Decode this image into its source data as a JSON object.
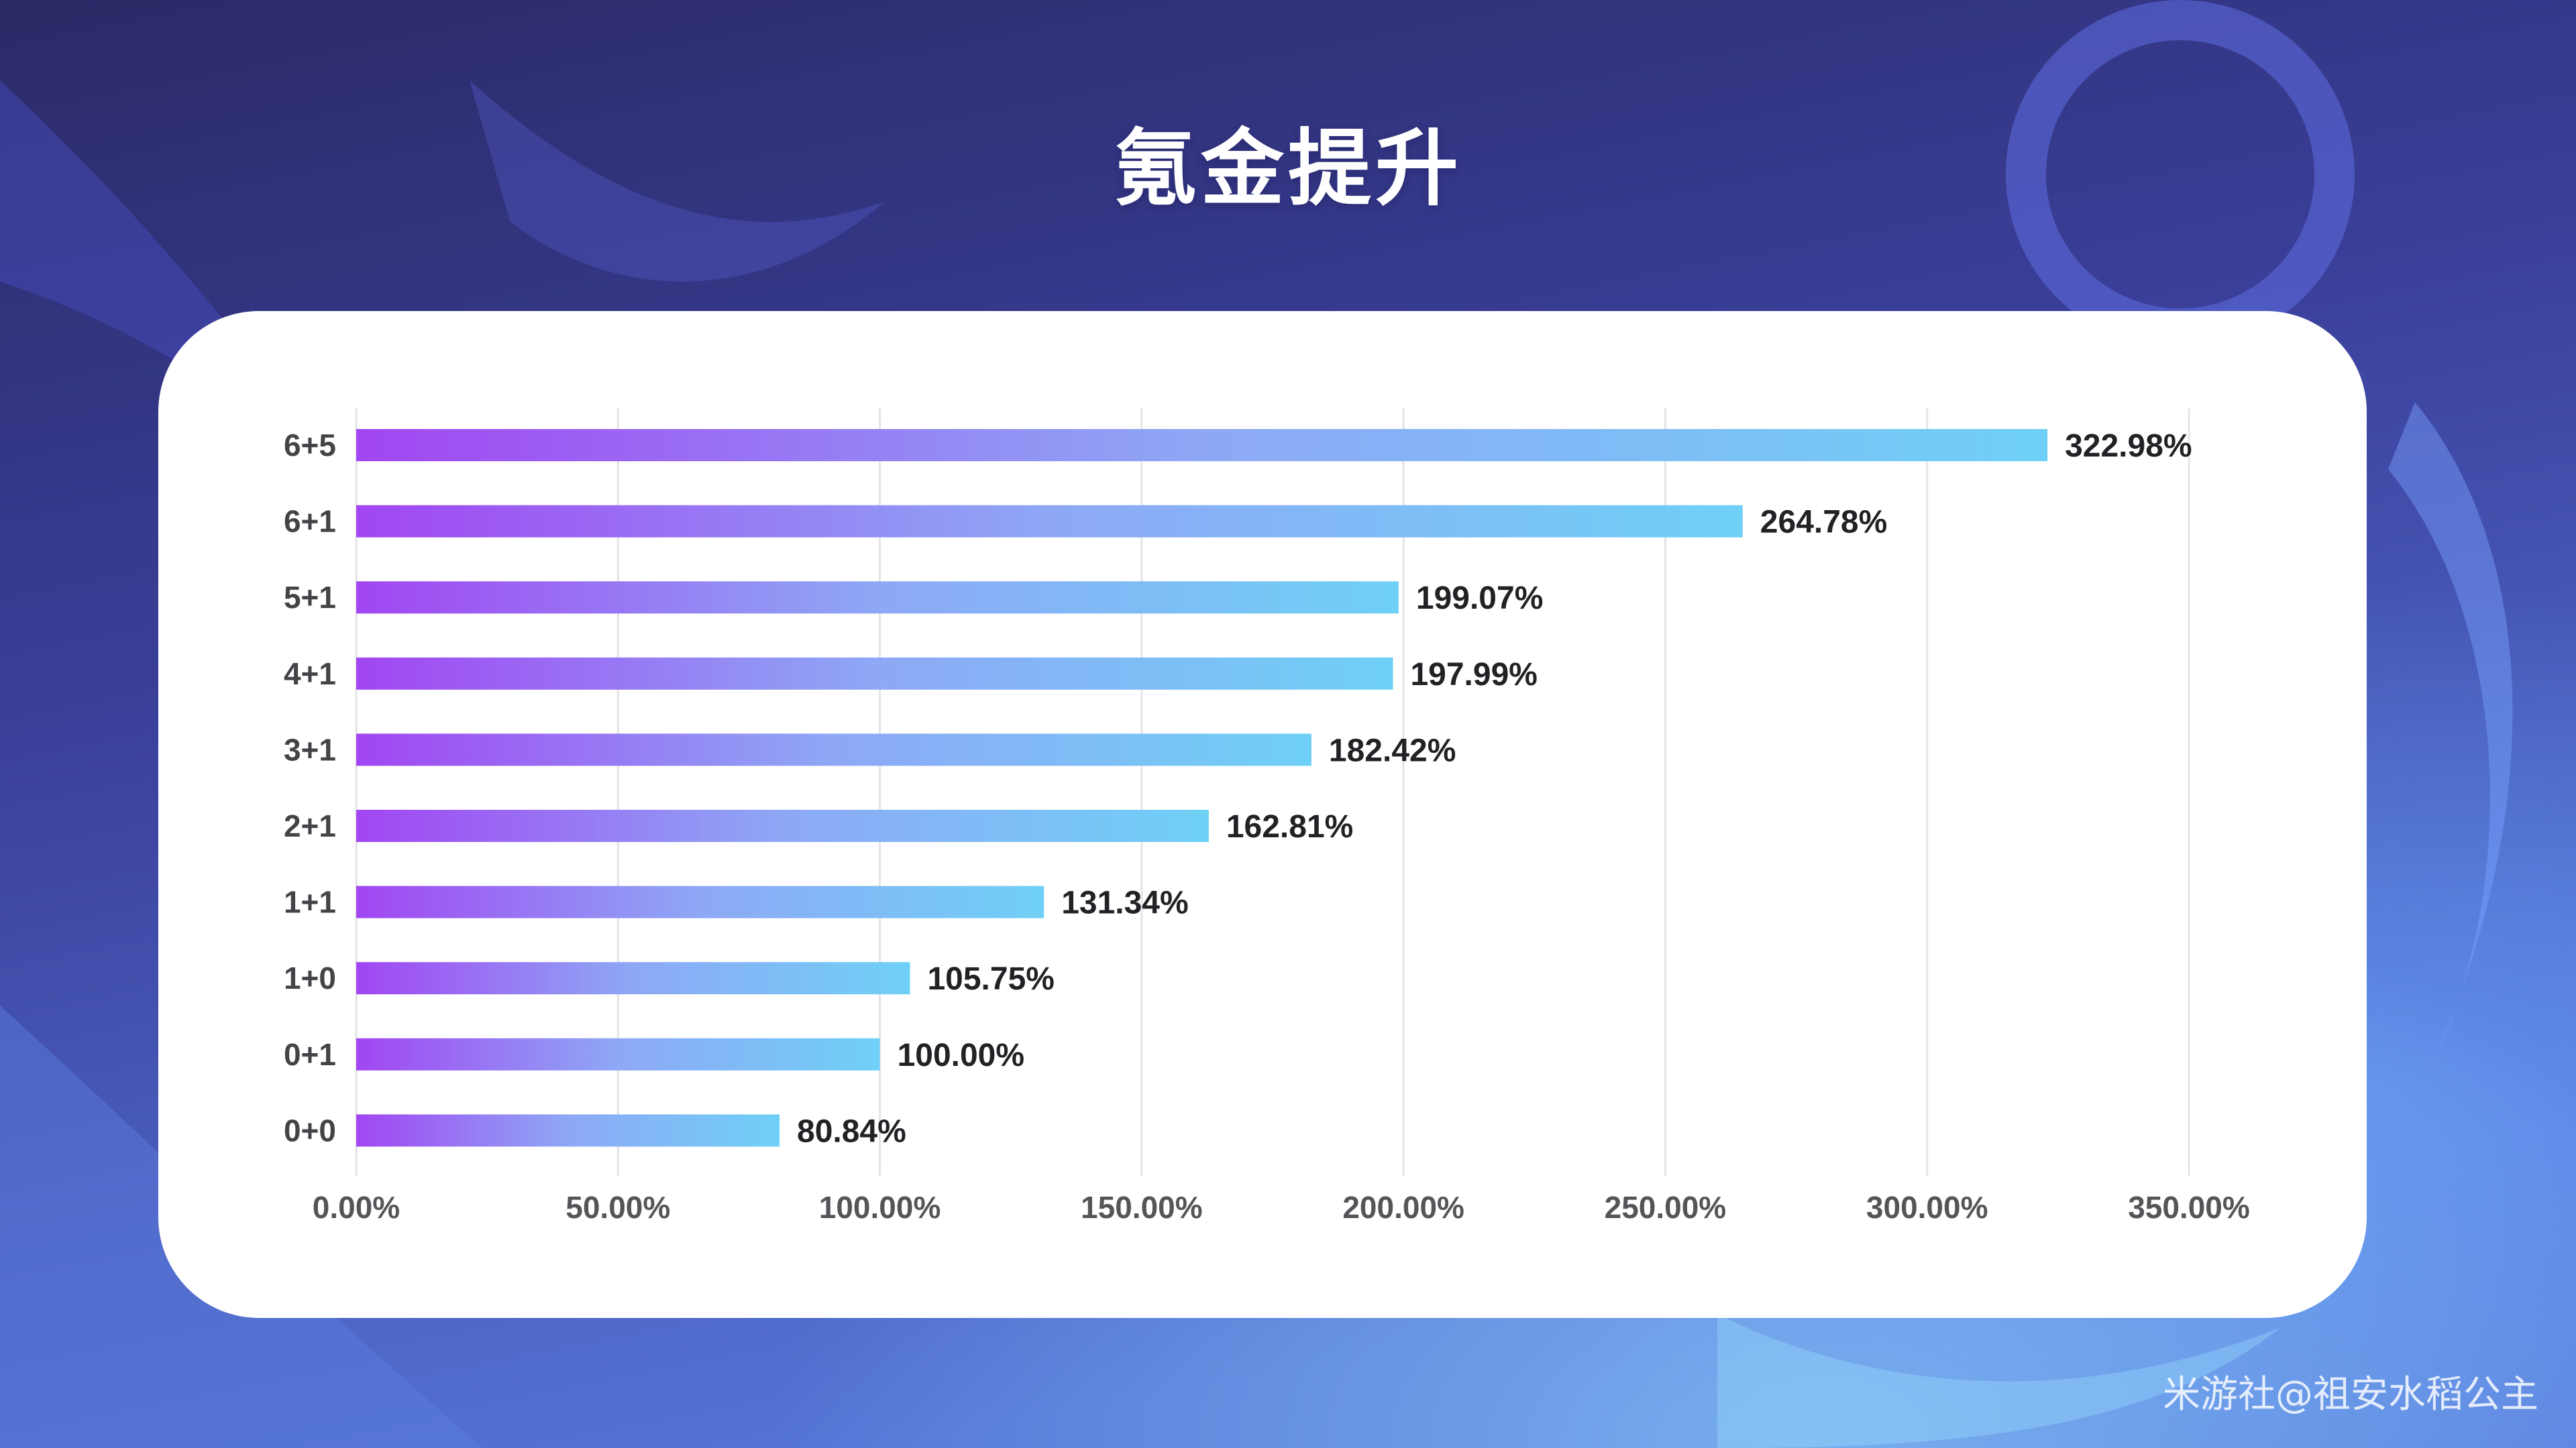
{
  "title": "氪金提升",
  "watermark": "米游社@祖安水稻公主",
  "colors": {
    "bar_start": "#a146f2",
    "bar_mid": "#8ea8f5",
    "bar_end": "#6fd0f7",
    "grid": "#e4e4e8"
  },
  "chart_data": {
    "type": "bar",
    "orientation": "horizontal",
    "categories": [
      "6+5",
      "6+1",
      "5+1",
      "4+1",
      "3+1",
      "2+1",
      "1+1",
      "1+0",
      "0+1",
      "0+0"
    ],
    "values": [
      322.98,
      264.78,
      199.07,
      197.99,
      182.42,
      162.81,
      131.34,
      105.75,
      100.0,
      80.84
    ],
    "data_labels": [
      "322.98%",
      "264.78%",
      "199.07%",
      "197.99%",
      "182.42%",
      "162.81%",
      "131.34%",
      "105.75%",
      "100.00%",
      "80.84%"
    ],
    "x_ticks": [
      0,
      50,
      100,
      150,
      200,
      250,
      300,
      350
    ],
    "x_tick_labels": [
      "0.00%",
      "50.00%",
      "100.00%",
      "150.00%",
      "200.00%",
      "250.00%",
      "300.00%",
      "350.00%"
    ],
    "xlim": [
      0,
      350
    ],
    "grid": true,
    "legend": false
  }
}
